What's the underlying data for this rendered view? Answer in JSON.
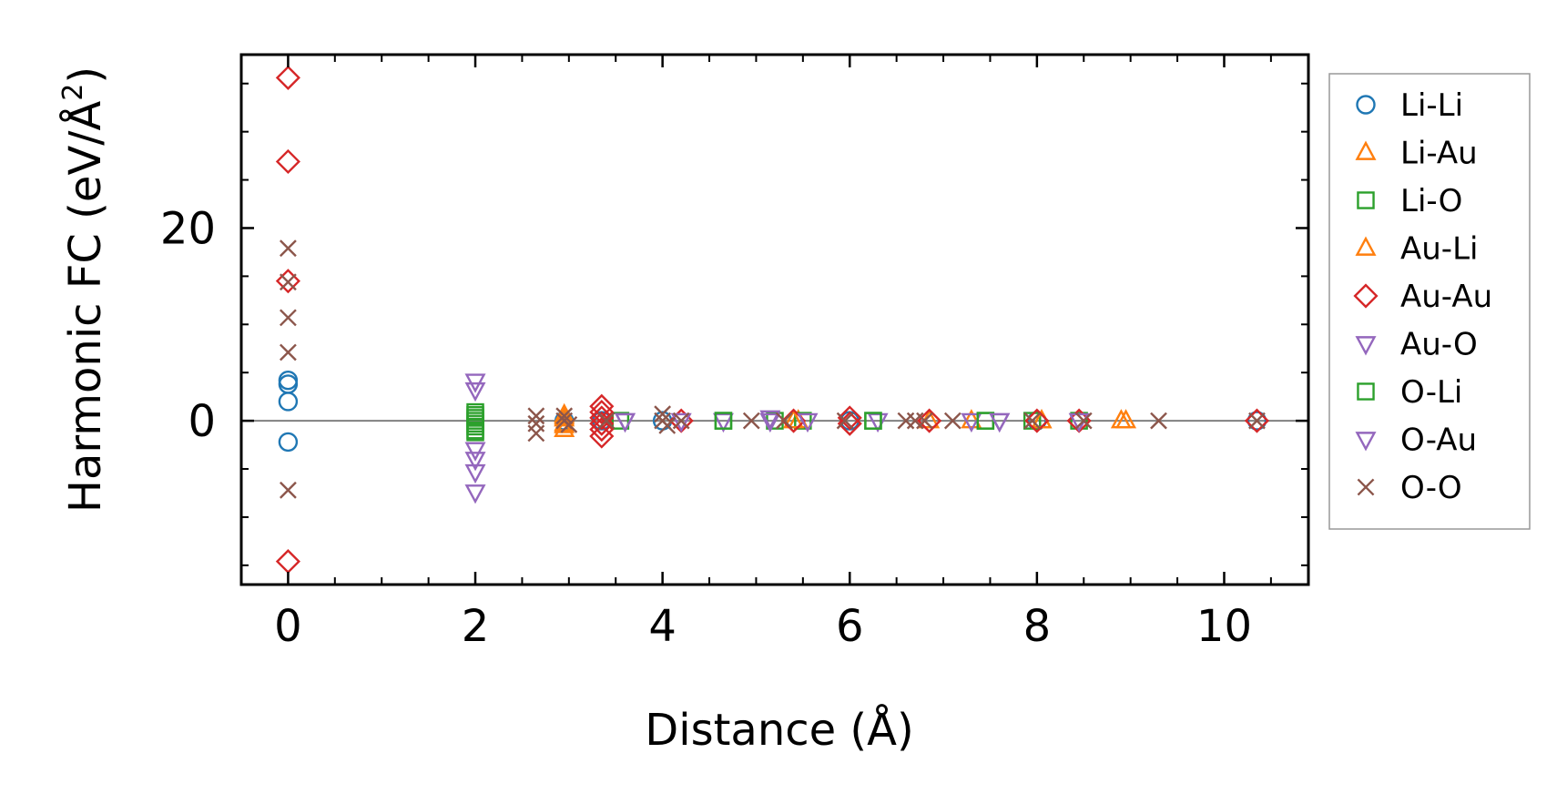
{
  "chart_data": {
    "type": "scatter",
    "xlabel": "Distance (Å)",
    "ylabel_main": "Harmonic FC (eV/Å",
    "ylabel_sup": "2",
    "ylabel_close": ")",
    "xlim": [
      -0.5,
      10.9
    ],
    "ylim": [
      -17,
      38
    ],
    "xticks": [
      0,
      2,
      4,
      6,
      8,
      10
    ],
    "xtick_labels": [
      "0",
      "2",
      "4",
      "6",
      "8",
      "10"
    ],
    "yticks": [
      0,
      20
    ],
    "ytick_labels": [
      "0",
      "20"
    ],
    "zero_line": true,
    "grid": false,
    "legend_position": "right, outside plot",
    "series": [
      {
        "name": "Li-Li",
        "marker": "circle",
        "color": "#1f77b4",
        "points": [
          [
            0,
            4.2
          ],
          [
            0,
            3.8
          ],
          [
            0,
            2.0
          ],
          [
            0,
            -2.2
          ],
          [
            2.95,
            0.0
          ],
          [
            3.35,
            0.0
          ],
          [
            4.0,
            0.0
          ],
          [
            6.0,
            0.0
          ],
          [
            8.0,
            0.0
          ],
          [
            10.35,
            0.0
          ]
        ]
      },
      {
        "name": "Li-Au",
        "marker": "triangle-up",
        "color": "#ff7f0e",
        "points": [
          [
            2.95,
            0.6
          ],
          [
            2.95,
            0.2
          ],
          [
            2.95,
            -0.3
          ],
          [
            2.95,
            -0.9
          ],
          [
            5.45,
            0.0
          ],
          [
            7.3,
            0.0
          ],
          [
            8.05,
            0.0
          ],
          [
            8.9,
            0.0
          ]
        ]
      },
      {
        "name": "Li-O",
        "marker": "square",
        "color": "#2ca02c",
        "points": [
          [
            2.0,
            0.6
          ],
          [
            2.0,
            0.0
          ],
          [
            2.0,
            -0.6
          ],
          [
            2.0,
            -1.2
          ],
          [
            3.55,
            0.0
          ],
          [
            4.65,
            0.0
          ],
          [
            5.2,
            0.0
          ],
          [
            5.5,
            0.0
          ],
          [
            6.25,
            0.0
          ],
          [
            7.45,
            0.0
          ],
          [
            7.95,
            0.0
          ],
          [
            8.45,
            0.0
          ]
        ]
      },
      {
        "name": "Au-Li",
        "marker": "triangle-up",
        "color": "#ff7f0e",
        "points": [
          [
            2.95,
            0.4
          ],
          [
            2.95,
            -0.5
          ],
          [
            5.4,
            0.0
          ],
          [
            6.85,
            0.0
          ],
          [
            8.05,
            0.0
          ],
          [
            8.95,
            0.0
          ]
        ]
      },
      {
        "name": "Au-Au",
        "marker": "diamond",
        "color": "#d62728",
        "points": [
          [
            0,
            35.6
          ],
          [
            0,
            26.9
          ],
          [
            0,
            14.5
          ],
          [
            0,
            -14.6
          ],
          [
            3.35,
            1.5
          ],
          [
            3.35,
            0.9
          ],
          [
            3.35,
            0.3
          ],
          [
            3.35,
            -0.3
          ],
          [
            3.35,
            -0.9
          ],
          [
            3.35,
            -1.6
          ],
          [
            4.2,
            0.0
          ],
          [
            5.4,
            0.0
          ],
          [
            6.0,
            0.3
          ],
          [
            6.0,
            -0.3
          ],
          [
            6.85,
            0.0
          ],
          [
            8.0,
            0.0
          ],
          [
            8.45,
            0.0
          ],
          [
            10.35,
            0.0
          ]
        ]
      },
      {
        "name": "Au-O",
        "marker": "triangle-down",
        "color": "#9467bd",
        "points": [
          [
            2.0,
            4.1
          ],
          [
            2.0,
            3.2
          ],
          [
            3.6,
            0.0
          ],
          [
            4.2,
            0.0
          ],
          [
            4.65,
            0.0
          ],
          [
            5.15,
            0.3
          ],
          [
            5.55,
            0.0
          ],
          [
            6.3,
            0.0
          ],
          [
            7.3,
            0.0
          ],
          [
            7.6,
            0.0
          ],
          [
            8.45,
            0.0
          ]
        ]
      },
      {
        "name": "O-Li",
        "marker": "square",
        "color": "#2ca02c",
        "points": [
          [
            2.0,
            0.9
          ],
          [
            2.0,
            0.3
          ],
          [
            2.0,
            -0.3
          ],
          [
            2.0,
            -1.0
          ],
          [
            4.65,
            0.0
          ],
          [
            6.25,
            0.0
          ],
          [
            7.45,
            0.0
          ]
        ]
      },
      {
        "name": "O-Au",
        "marker": "triangle-down",
        "color": "#9467bd",
        "points": [
          [
            2.0,
            -3.0
          ],
          [
            2.0,
            -4.0
          ],
          [
            2.0,
            -5.3
          ],
          [
            2.0,
            -7.4
          ],
          [
            3.6,
            0.0
          ],
          [
            5.15,
            0.0
          ],
          [
            7.6,
            0.0
          ]
        ]
      },
      {
        "name": "O-O",
        "marker": "x",
        "color": "#8c564b",
        "points": [
          [
            0,
            17.9
          ],
          [
            0,
            14.4
          ],
          [
            0,
            10.7
          ],
          [
            0,
            7.1
          ],
          [
            0,
            -7.2
          ],
          [
            2.65,
            0.5
          ],
          [
            2.65,
            -0.3
          ],
          [
            2.65,
            -1.3
          ],
          [
            2.95,
            0.5
          ],
          [
            2.95,
            0.0
          ],
          [
            3.0,
            -0.4
          ],
          [
            3.4,
            0.0
          ],
          [
            4.0,
            0.7
          ],
          [
            4.0,
            0.0
          ],
          [
            4.05,
            -0.5
          ],
          [
            4.2,
            0.0
          ],
          [
            4.95,
            0.0
          ],
          [
            5.3,
            0.0
          ],
          [
            5.95,
            0.0
          ],
          [
            6.6,
            0.0
          ],
          [
            6.7,
            0.0
          ],
          [
            6.8,
            0.0
          ],
          [
            7.1,
            0.0
          ],
          [
            7.95,
            0.0
          ],
          [
            8.5,
            0.0
          ],
          [
            9.3,
            0.0
          ],
          [
            10.35,
            0.0
          ]
        ]
      }
    ]
  }
}
